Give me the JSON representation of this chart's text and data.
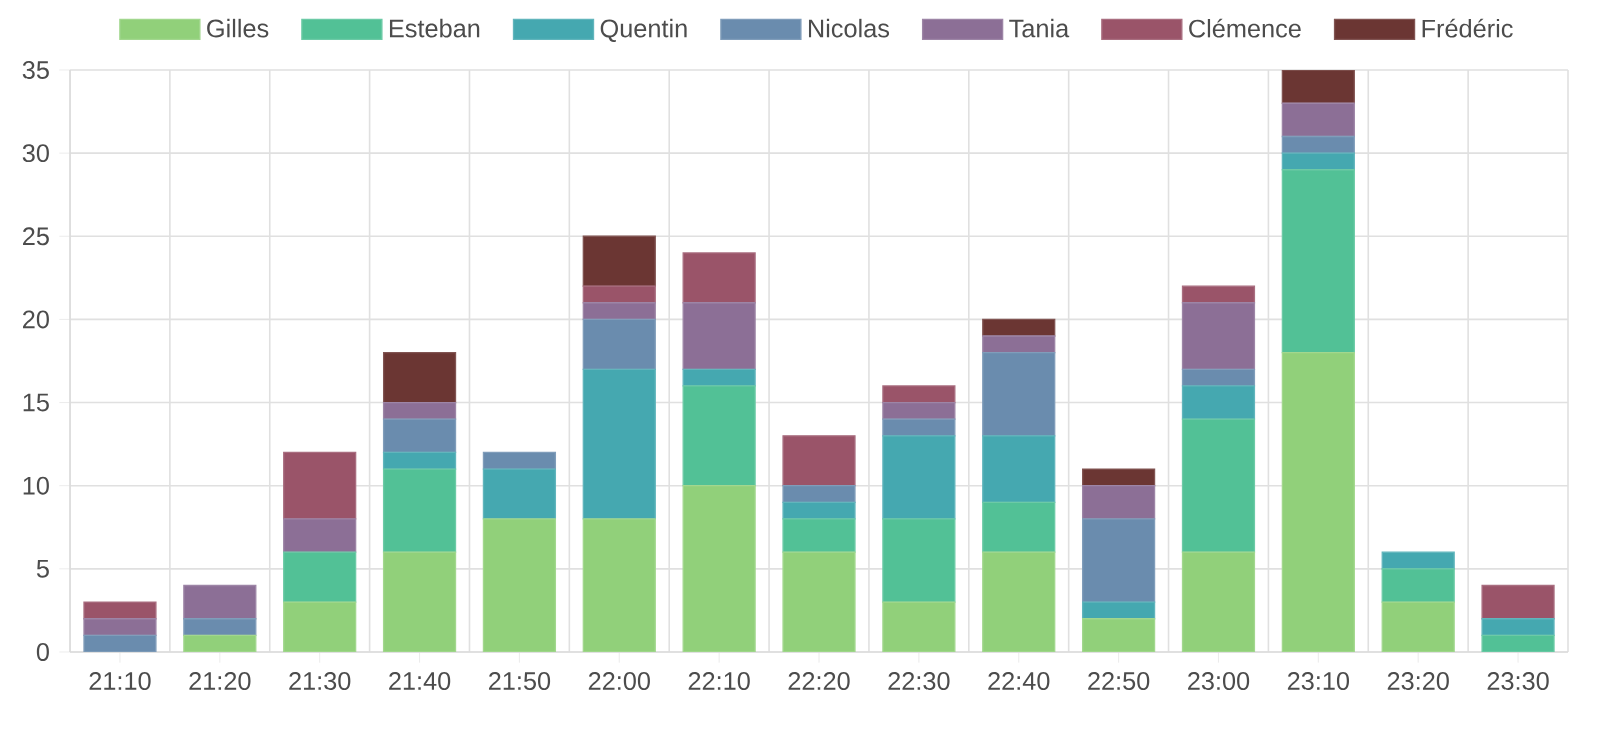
{
  "chart_data": {
    "type": "bar",
    "stacked": true,
    "categories": [
      "21:10",
      "21:20",
      "21:30",
      "21:40",
      "21:50",
      "22:00",
      "22:10",
      "22:20",
      "22:30",
      "22:40",
      "22:50",
      "23:00",
      "23:10",
      "23:20",
      "23:30"
    ],
    "series": [
      {
        "name": "Gilles",
        "color": "#91d07a",
        "values": [
          0,
          1,
          3,
          6,
          8,
          8,
          10,
          6,
          3,
          6,
          2,
          6,
          18,
          3,
          0
        ]
      },
      {
        "name": "Esteban",
        "color": "#52c196",
        "values": [
          0,
          0,
          3,
          5,
          0,
          0,
          6,
          2,
          5,
          3,
          0,
          8,
          11,
          2,
          1
        ]
      },
      {
        "name": "Quentin",
        "color": "#45a8b0",
        "values": [
          0,
          0,
          0,
          1,
          3,
          9,
          1,
          1,
          5,
          4,
          1,
          2,
          1,
          1,
          1
        ]
      },
      {
        "name": "Nicolas",
        "color": "#6a8cae",
        "values": [
          1,
          1,
          0,
          2,
          1,
          3,
          0,
          1,
          1,
          5,
          5,
          1,
          1,
          0,
          0
        ]
      },
      {
        "name": "Tania",
        "color": "#8c6f96",
        "values": [
          1,
          2,
          2,
          1,
          0,
          1,
          4,
          0,
          1,
          1,
          2,
          4,
          2,
          0,
          0
        ]
      },
      {
        "name": "Clémence",
        "color": "#9a5469",
        "values": [
          1,
          0,
          4,
          0,
          0,
          1,
          3,
          3,
          1,
          0,
          0,
          1,
          0,
          0,
          2
        ]
      },
      {
        "name": "Frédéric",
        "color": "#6b3633",
        "values": [
          0,
          0,
          0,
          3,
          0,
          3,
          0,
          0,
          0,
          1,
          1,
          0,
          2,
          0,
          0
        ]
      }
    ],
    "ylim": [
      0,
      35
    ],
    "yticks": [
      0,
      5,
      10,
      15,
      20,
      25,
      30,
      35
    ],
    "grid": true,
    "legend": "top"
  }
}
